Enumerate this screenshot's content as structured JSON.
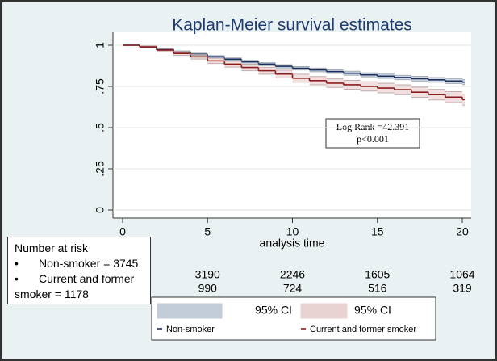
{
  "chart_data": {
    "type": "step",
    "title": "Kaplan-Meier survival estimates",
    "x_label": "analysis time",
    "x": [
      0,
      1,
      2,
      3,
      4,
      5,
      6,
      7,
      8,
      9,
      10,
      11,
      12,
      13,
      14,
      15,
      16,
      17,
      18,
      19,
      20
    ],
    "series": [
      {
        "name": "Non-smoker",
        "color": "#1b2d5c",
        "ci_name": "95% CI",
        "ci_color": "#c9d3e0",
        "values": [
          1,
          0.99,
          0.975,
          0.96,
          0.945,
          0.93,
          0.915,
          0.9,
          0.885,
          0.872,
          0.86,
          0.85,
          0.84,
          0.83,
          0.82,
          0.812,
          0.804,
          0.797,
          0.79,
          0.783,
          0.776
        ],
        "ci_lower": [
          1,
          0.987,
          0.971,
          0.955,
          0.939,
          0.923,
          0.907,
          0.892,
          0.876,
          0.862,
          0.85,
          0.839,
          0.829,
          0.818,
          0.808,
          0.799,
          0.791,
          0.783,
          0.776,
          0.768,
          0.761
        ],
        "ci_upper": [
          1,
          0.993,
          0.979,
          0.965,
          0.951,
          0.937,
          0.923,
          0.908,
          0.894,
          0.882,
          0.87,
          0.861,
          0.851,
          0.842,
          0.832,
          0.825,
          0.817,
          0.811,
          0.804,
          0.798,
          0.791
        ]
      },
      {
        "name": "Current and former smoker",
        "color": "#8b1c1c",
        "ci_name": "95% CI",
        "ci_color": "#f0d9d9",
        "values": [
          1,
          0.99,
          0.97,
          0.95,
          0.93,
          0.905,
          0.885,
          0.865,
          0.845,
          0.825,
          0.8,
          0.785,
          0.77,
          0.76,
          0.75,
          0.74,
          0.73,
          0.715,
          0.7,
          0.685,
          0.67
        ],
        "ci_lower": [
          1,
          0.984,
          0.961,
          0.938,
          0.916,
          0.889,
          0.867,
          0.845,
          0.824,
          0.802,
          0.776,
          0.76,
          0.744,
          0.733,
          0.722,
          0.711,
          0.7,
          0.684,
          0.668,
          0.652,
          0.636
        ],
        "ci_upper": [
          1,
          0.996,
          0.979,
          0.962,
          0.944,
          0.921,
          0.903,
          0.885,
          0.866,
          0.848,
          0.824,
          0.81,
          0.796,
          0.787,
          0.778,
          0.769,
          0.76,
          0.746,
          0.732,
          0.718,
          0.704
        ]
      }
    ],
    "xlim": [
      0,
      20
    ],
    "xticks": [
      0,
      5,
      10,
      15,
      20
    ],
    "ylim": [
      0,
      1
    ],
    "yticks": [
      0,
      {
        "value": 0.25,
        "label": ".25"
      },
      {
        "value": 0.5,
        "label": ".5"
      },
      {
        "value": 0.75,
        "label": ".75"
      },
      1
    ],
    "grid": true,
    "annotation": [
      "Log Rank =42.391",
      "p<0.001"
    ],
    "at_risk": {
      "title": "Number at risk",
      "x": [
        5,
        10,
        15,
        20
      ],
      "rows": [
        {
          "label": "Non-smoker = 3745",
          "values": [
            3190,
            2246,
            1605,
            1064
          ]
        },
        {
          "label": "Current and former smoker =  1178",
          "values": [
            990,
            724,
            516,
            319
          ]
        }
      ]
    }
  }
}
